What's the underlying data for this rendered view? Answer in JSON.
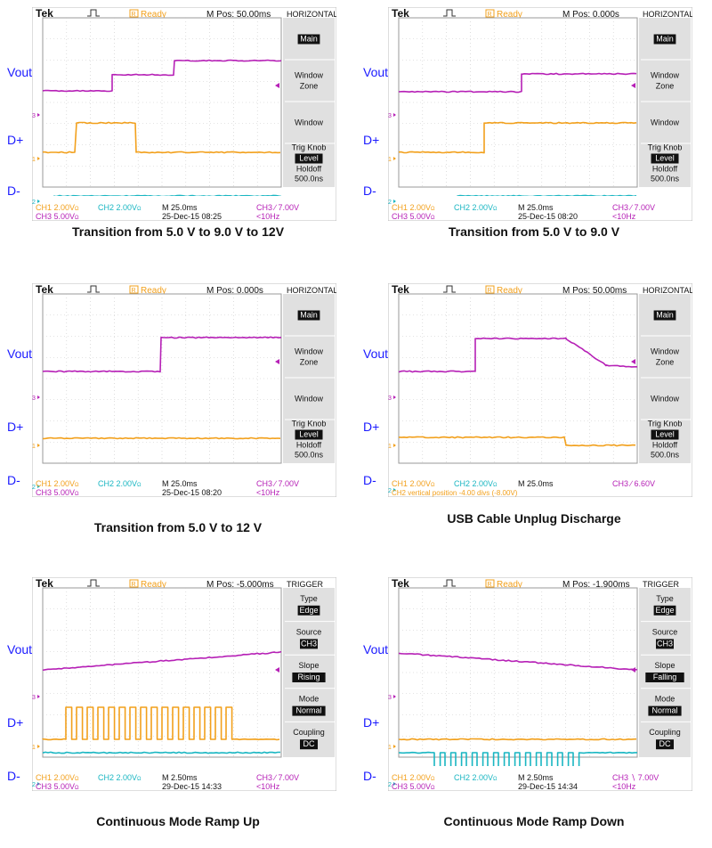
{
  "colors": {
    "ch1": "#f2a01c",
    "ch2": "#19b6c2",
    "ch3": "#b620b6",
    "ready": "#f2a01c",
    "label": "#1a1aff",
    "grid": "#c8c8c8",
    "menuBg": "#e0e0e0"
  },
  "labels": {
    "vout": "Vout",
    "dplus": "D+",
    "dminus": "D-"
  },
  "common": {
    "tek": "Tek",
    "ready": "Ready",
    "ch1_scale": "CH1  2.00V",
    "ch2_scale": "CH2  2.00V",
    "ch3_scale": "CH3  5.00V",
    "bw": "Ω",
    "marker1": "1",
    "marker2": "2",
    "marker3": "3"
  },
  "panels": [
    {
      "mpos": "M Pos: 50.00ms",
      "section": "HORIZONTAL",
      "menu": [
        {
          "kind": "box",
          "text": "Main"
        },
        {
          "kind": "text2",
          "t1": "Window",
          "t2": "Zone"
        },
        {
          "kind": "text",
          "text": "Window"
        },
        {
          "kind": "trig",
          "t1": "Trig Knob",
          "box": "Level",
          "t2": "Holdoff",
          "t3": "500.0ns"
        }
      ],
      "timebase": "M 25.0ms",
      "trig": "CH3 ∕ 7.00V",
      "date": "25-Dec-15 08:25",
      "freq": "<10Hz",
      "caption": "Transition from 5.0 V to 9.0 V to 12V"
    },
    {
      "mpos": "M Pos: 0.000s",
      "section": "HORIZONTAL",
      "menu": [
        {
          "kind": "box",
          "text": "Main"
        },
        {
          "kind": "text2",
          "t1": "Window",
          "t2": "Zone"
        },
        {
          "kind": "text",
          "text": "Window"
        },
        {
          "kind": "trig",
          "t1": "Trig Knob",
          "box": "Level",
          "t2": "Holdoff",
          "t3": "500.0ns"
        }
      ],
      "timebase": "M 25.0ms",
      "trig": "CH3 ∕ 7.00V",
      "date": "25-Dec-15 08:20",
      "freq": "<10Hz",
      "caption": "Transition from 5.0 V to 9.0 V"
    },
    {
      "mpos": "M Pos: 0.000s",
      "section": "HORIZONTAL",
      "menu": [
        {
          "kind": "box",
          "text": "Main"
        },
        {
          "kind": "text2",
          "t1": "Window",
          "t2": "Zone"
        },
        {
          "kind": "text",
          "text": "Window"
        },
        {
          "kind": "trig",
          "t1": "Trig Knob",
          "box": "Level",
          "t2": "Holdoff",
          "t3": "500.0ns"
        }
      ],
      "timebase": "M 25.0ms",
      "trig": "CH3 ∕ 7.00V",
      "date": "25-Dec-15 08:20",
      "freq": "<10Hz",
      "caption": "Transition from 5.0 V to 12 V"
    },
    {
      "mpos": "M Pos: 50.00ms",
      "section": "HORIZONTAL",
      "menu": [
        {
          "kind": "box",
          "text": "Main"
        },
        {
          "kind": "text2",
          "t1": "Window",
          "t2": "Zone"
        },
        {
          "kind": "text",
          "text": "Window"
        },
        {
          "kind": "trig",
          "t1": "Trig Knob",
          "box": "Level",
          "t2": "Holdoff",
          "t3": "500.0ns"
        }
      ],
      "timebase": "M 25.0ms",
      "trig": "CH3 ∕ 6.60V",
      "vpos": "CH2 vertical position -4.00 divs (-8.00V)",
      "caption": "USB Cable Unplug Discharge"
    },
    {
      "mpos": "M Pos: -5.000ms",
      "section": "TRIGGER",
      "menu": [
        {
          "kind": "labelbox",
          "t1": "Type",
          "box": "Edge"
        },
        {
          "kind": "labelbox",
          "t1": "Source",
          "box": "CH3"
        },
        {
          "kind": "labelbox",
          "t1": "Slope",
          "box": "Rising"
        },
        {
          "kind": "labelbox",
          "t1": "Mode",
          "box": "Normal"
        },
        {
          "kind": "labelbox",
          "t1": "Coupling",
          "box": "DC"
        }
      ],
      "timebase": "M 2.50ms",
      "trig": "CH3 ∕ 7.00V",
      "date": "29-Dec-15 14:33",
      "freq": "<10Hz",
      "caption": "Continuous Mode Ramp Up"
    },
    {
      "mpos": "M Pos: -1.900ms",
      "section": "TRIGGER",
      "menu": [
        {
          "kind": "labelbox",
          "t1": "Type",
          "box": "Edge"
        },
        {
          "kind": "labelbox",
          "t1": "Source",
          "box": "CH3"
        },
        {
          "kind": "labelbox",
          "t1": "Slope",
          "box": "Falling"
        },
        {
          "kind": "labelbox",
          "t1": "Mode",
          "box": "Normal"
        },
        {
          "kind": "labelbox",
          "t1": "Coupling",
          "box": "DC"
        }
      ],
      "timebase": "M 2.50ms",
      "trig": "CH3 ∖ 7.00V",
      "date": "29-Dec-15 14:34",
      "freq": "<10Hz",
      "caption": "Continuous Mode Ramp Down"
    }
  ]
}
